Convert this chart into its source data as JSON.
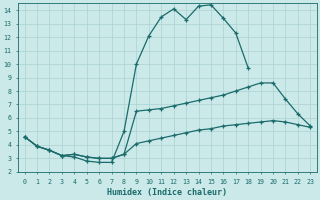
{
  "xlabel": "Humidex (Indice chaleur)",
  "bg_color": "#cce9e9",
  "grid_color": "#b0d4d4",
  "line_color": "#1a6b6b",
  "xlim": [
    -0.5,
    23.5
  ],
  "ylim": [
    2,
    14.5
  ],
  "xticks": [
    0,
    1,
    2,
    3,
    4,
    5,
    6,
    7,
    8,
    9,
    10,
    11,
    12,
    13,
    14,
    15,
    16,
    17,
    18,
    19,
    20,
    21,
    22,
    23
  ],
  "yticks": [
    2,
    3,
    4,
    5,
    6,
    7,
    8,
    9,
    10,
    11,
    12,
    13,
    14
  ],
  "line1_x": [
    0,
    1,
    2,
    3,
    4,
    5,
    6,
    7,
    8,
    9,
    10,
    11,
    12,
    13,
    14,
    15,
    16,
    17,
    18
  ],
  "line1_y": [
    4.6,
    3.9,
    3.6,
    3.2,
    3.1,
    2.8,
    2.7,
    2.7,
    5.0,
    10.0,
    12.1,
    13.5,
    14.1,
    13.3,
    14.3,
    14.4,
    13.4,
    12.3,
    9.7
  ],
  "line2_x": [
    0,
    1,
    2,
    3,
    4,
    5,
    6,
    7,
    8,
    9,
    10,
    11,
    12,
    13,
    14,
    15,
    16,
    17,
    18,
    19,
    20,
    21,
    22,
    23
  ],
  "line2_y": [
    4.6,
    3.9,
    3.6,
    3.2,
    3.3,
    3.1,
    3.0,
    3.0,
    3.3,
    6.5,
    6.6,
    6.7,
    6.9,
    7.1,
    7.3,
    7.5,
    7.7,
    8.0,
    8.3,
    8.6,
    8.6,
    7.4,
    6.3,
    5.4
  ],
  "line3_x": [
    0,
    1,
    2,
    3,
    4,
    5,
    6,
    7,
    8,
    9,
    10,
    11,
    12,
    13,
    14,
    15,
    16,
    17,
    18,
    19,
    20,
    21,
    22,
    23
  ],
  "line3_y": [
    4.6,
    3.9,
    3.6,
    3.2,
    3.3,
    3.1,
    3.0,
    3.0,
    3.3,
    4.1,
    4.3,
    4.5,
    4.7,
    4.9,
    5.1,
    5.2,
    5.4,
    5.5,
    5.6,
    5.7,
    5.8,
    5.7,
    5.5,
    5.3
  ]
}
